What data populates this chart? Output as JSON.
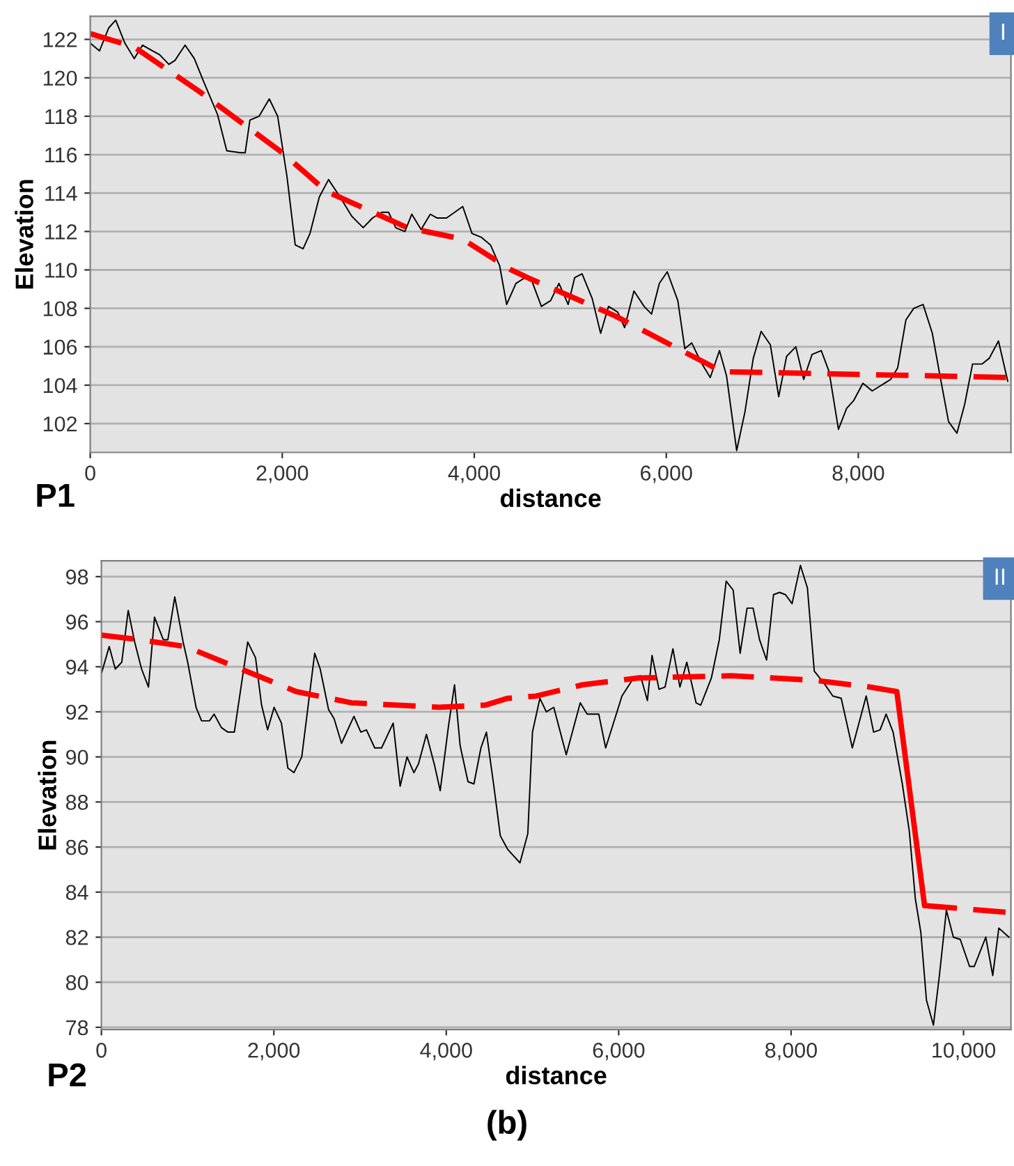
{
  "chart_data": [
    {
      "type": "line",
      "xlabel": "distance",
      "ylabel": "Elevation",
      "annotations": [
        "I",
        "P1"
      ],
      "xlim": [
        0,
        9590
      ],
      "ylim": [
        100.5,
        123.2
      ],
      "xticks": [
        0,
        {
          "value": 2000,
          "label": "2,000"
        },
        {
          "value": 4000,
          "label": "4,000"
        },
        {
          "value": 6000,
          "label": "6,000"
        },
        {
          "value": 8000,
          "label": "8,000"
        }
      ],
      "yticks": [
        102,
        104,
        106,
        108,
        110,
        112,
        114,
        116,
        118,
        120,
        122
      ],
      "grid": "y",
      "legend": false,
      "series": [
        {
          "color": "#000000",
          "line_style": "solid",
          "x": [
            0,
            96,
            193,
            265,
            361,
            458,
            545,
            650,
            723,
            819,
            882,
            988,
            1084,
            1181,
            1325,
            1422,
            1566,
            1614,
            1663,
            1759,
            1865,
            1952,
            2048,
            2135,
            2217,
            2289,
            2386,
            2482,
            2602,
            2723,
            2843,
            2940,
            3036,
            3108,
            3181,
            3277,
            3349,
            3446,
            3542,
            3614,
            3711,
            3880,
            3976,
            4072,
            4169,
            4265,
            4337,
            4434,
            4530,
            4602,
            4699,
            4795,
            4882,
            4978,
            5046,
            5123,
            5229,
            5316,
            5398,
            5494,
            5566,
            5663,
            5769,
            5846,
            5928,
            6010,
            6120,
            6193,
            6265,
            6361,
            6458,
            6554,
            6627,
            6733,
            6819,
            6906,
            6988,
            7084,
            7171,
            7253,
            7349,
            7431,
            7518,
            7614,
            7696,
            7793,
            7879,
            7952,
            8048,
            8145,
            8241,
            8337,
            8410,
            8496,
            8578,
            8675,
            8771,
            8843,
            8940,
            9027,
            9108,
            9190,
            9287,
            9364,
            9460,
            9557
          ],
          "values": [
            121.8,
            121.4,
            122.6,
            123.0,
            121.8,
            121.0,
            121.7,
            121.4,
            121.2,
            120.7,
            120.9,
            121.7,
            121.0,
            119.8,
            118.1,
            116.2,
            116.1,
            116.1,
            117.8,
            118.0,
            118.9,
            118.0,
            114.9,
            111.3,
            111.1,
            111.9,
            113.8,
            114.7,
            113.8,
            112.8,
            112.2,
            112.7,
            113.0,
            113.0,
            112.2,
            112.0,
            112.9,
            112.1,
            112.9,
            112.7,
            112.7,
            113.3,
            111.9,
            111.7,
            111.3,
            110.2,
            108.2,
            109.3,
            109.6,
            109.4,
            108.1,
            108.4,
            109.3,
            108.2,
            109.6,
            109.8,
            108.5,
            106.7,
            108.1,
            107.8,
            107.0,
            108.9,
            108.1,
            107.7,
            109.3,
            109.9,
            108.4,
            105.9,
            106.2,
            105.2,
            104.4,
            105.8,
            104.5,
            100.6,
            102.6,
            105.4,
            106.8,
            106.1,
            103.4,
            105.5,
            106.0,
            104.3,
            105.6,
            105.8,
            104.7,
            101.7,
            102.8,
            103.2,
            104.1,
            103.7,
            104.0,
            104.3,
            104.9,
            107.4,
            108.0,
            108.2,
            106.7,
            104.7,
            102.1,
            101.5,
            103.0,
            105.1,
            105.1,
            105.4,
            106.3,
            104.2
          ]
        },
        {
          "color": "#ff0000",
          "line_style": "dashed",
          "x": [
            0,
            458,
            1133,
            2000,
            2458,
            3301,
            3880,
            4385,
            4554,
            5470,
            6506,
            6578,
            6627,
            9586
          ],
          "values": [
            122.3,
            121.6,
            119.3,
            116.1,
            114.1,
            112.2,
            111.6,
            110.0,
            109.6,
            107.6,
            104.9,
            104.7,
            104.7,
            104.4
          ]
        }
      ]
    },
    {
      "type": "line",
      "xlabel": "distance",
      "ylabel": "Elevation",
      "annotations": [
        "II",
        "P2",
        "(b)"
      ],
      "xlim": [
        0,
        10550
      ],
      "ylim": [
        77.9,
        98.7
      ],
      "xticks": [
        0,
        {
          "value": 2000,
          "label": "2,000"
        },
        {
          "value": 4000,
          "label": "4,000"
        },
        {
          "value": 6000,
          "label": "6,000"
        },
        {
          "value": 8000,
          "label": "8,000"
        },
        {
          "value": 10000,
          "label": "10,000"
        }
      ],
      "yticks": [
        78,
        80,
        82,
        84,
        86,
        88,
        90,
        92,
        94,
        96,
        98
      ],
      "grid": "y",
      "legend": false,
      "series": [
        {
          "color": "#000000",
          "line_style": "solid",
          "x": [
            0,
            91,
            161,
            236,
            311,
            386,
            466,
            546,
            616,
            718,
            771,
            851,
            948,
            1001,
            1098,
            1162,
            1253,
            1307,
            1392,
            1467,
            1542,
            1697,
            1788,
            1858,
            1928,
            2003,
            2088,
            2163,
            2233,
            2324,
            2474,
            2538,
            2635,
            2699,
            2785,
            2929,
            3009,
            3074,
            3170,
            3250,
            3384,
            3465,
            3545,
            3625,
            3679,
            3770,
            3866,
            3930,
            4027,
            4096,
            4161,
            4252,
            4321,
            4402,
            4466,
            4552,
            4627,
            4712,
            4855,
            4946,
            5000,
            5086,
            5161,
            5247,
            5392,
            5554,
            5634,
            5769,
            5849,
            6038,
            6172,
            6253,
            6333,
            6387,
            6468,
            6538,
            6629,
            6710,
            6790,
            6898,
            6952,
            7075,
            7167,
            7247,
            7328,
            7409,
            7489,
            7559,
            7634,
            7715,
            7796,
            7866,
            7935,
            8011,
            8108,
            8189,
            8269,
            8376,
            8484,
            8581,
            8710,
            8871,
            8957,
            9032,
            9102,
            9183,
            9290,
            9371,
            9441,
            9505,
            9570,
            9651,
            9720,
            9801,
            9882,
            9962,
            10070,
            10124,
            10258,
            10339,
            10409,
            10527
          ],
          "values": [
            93.7,
            94.9,
            93.9,
            94.2,
            96.5,
            95.1,
            93.9,
            93.1,
            96.2,
            95.2,
            95.2,
            97.1,
            95.1,
            94.2,
            92.2,
            91.6,
            91.6,
            91.9,
            91.3,
            91.1,
            91.1,
            95.1,
            94.4,
            92.3,
            91.2,
            92.2,
            91.5,
            89.5,
            89.3,
            90.0,
            94.6,
            93.9,
            92.1,
            91.7,
            90.6,
            91.8,
            91.1,
            91.2,
            90.4,
            90.4,
            91.5,
            88.7,
            90.0,
            89.3,
            89.7,
            91.0,
            89.6,
            88.5,
            91.4,
            93.2,
            90.5,
            88.9,
            88.8,
            90.4,
            91.1,
            88.7,
            86.5,
            85.9,
            85.3,
            86.6,
            91.1,
            92.6,
            92.0,
            92.2,
            90.1,
            92.4,
            91.9,
            91.9,
            90.4,
            92.7,
            93.5,
            93.6,
            92.5,
            94.5,
            93.0,
            93.1,
            94.8,
            93.1,
            94.2,
            92.4,
            92.3,
            93.5,
            95.2,
            97.8,
            97.4,
            94.6,
            96.6,
            96.6,
            95.2,
            94.3,
            97.2,
            97.3,
            97.2,
            96.8,
            98.5,
            97.5,
            93.8,
            93.3,
            92.7,
            92.6,
            90.4,
            92.7,
            91.1,
            91.2,
            91.9,
            91.1,
            88.8,
            86.7,
            83.7,
            82.2,
            79.2,
            78.1,
            80.3,
            83.2,
            82.0,
            81.9,
            80.7,
            80.7,
            82.0,
            80.3,
            82.4,
            82.0
          ]
        },
        {
          "color": "#ff0000",
          "line_style": "dashed",
          "x": [
            0,
            439,
            975,
            1617,
            2260,
            2902,
            3920,
            4455,
            4712,
            5043,
            5581,
            6226,
            7301,
            8269,
            8914,
            9226
          ],
          "values": [
            95.4,
            95.2,
            94.9,
            93.9,
            92.9,
            92.4,
            92.2,
            92.3,
            92.6,
            92.7,
            93.2,
            93.5,
            93.6,
            93.4,
            93.1,
            92.9
          ]
        },
        {
          "color": "#ff0000",
          "line_style": "solid",
          "x": [
            9226,
            9548
          ],
          "values": [
            92.9,
            83.4
          ]
        },
        {
          "color": "#ff0000",
          "line_style": "dashed",
          "x": [
            9548,
            10527
          ],
          "values": [
            83.4,
            83.1
          ]
        }
      ]
    }
  ]
}
